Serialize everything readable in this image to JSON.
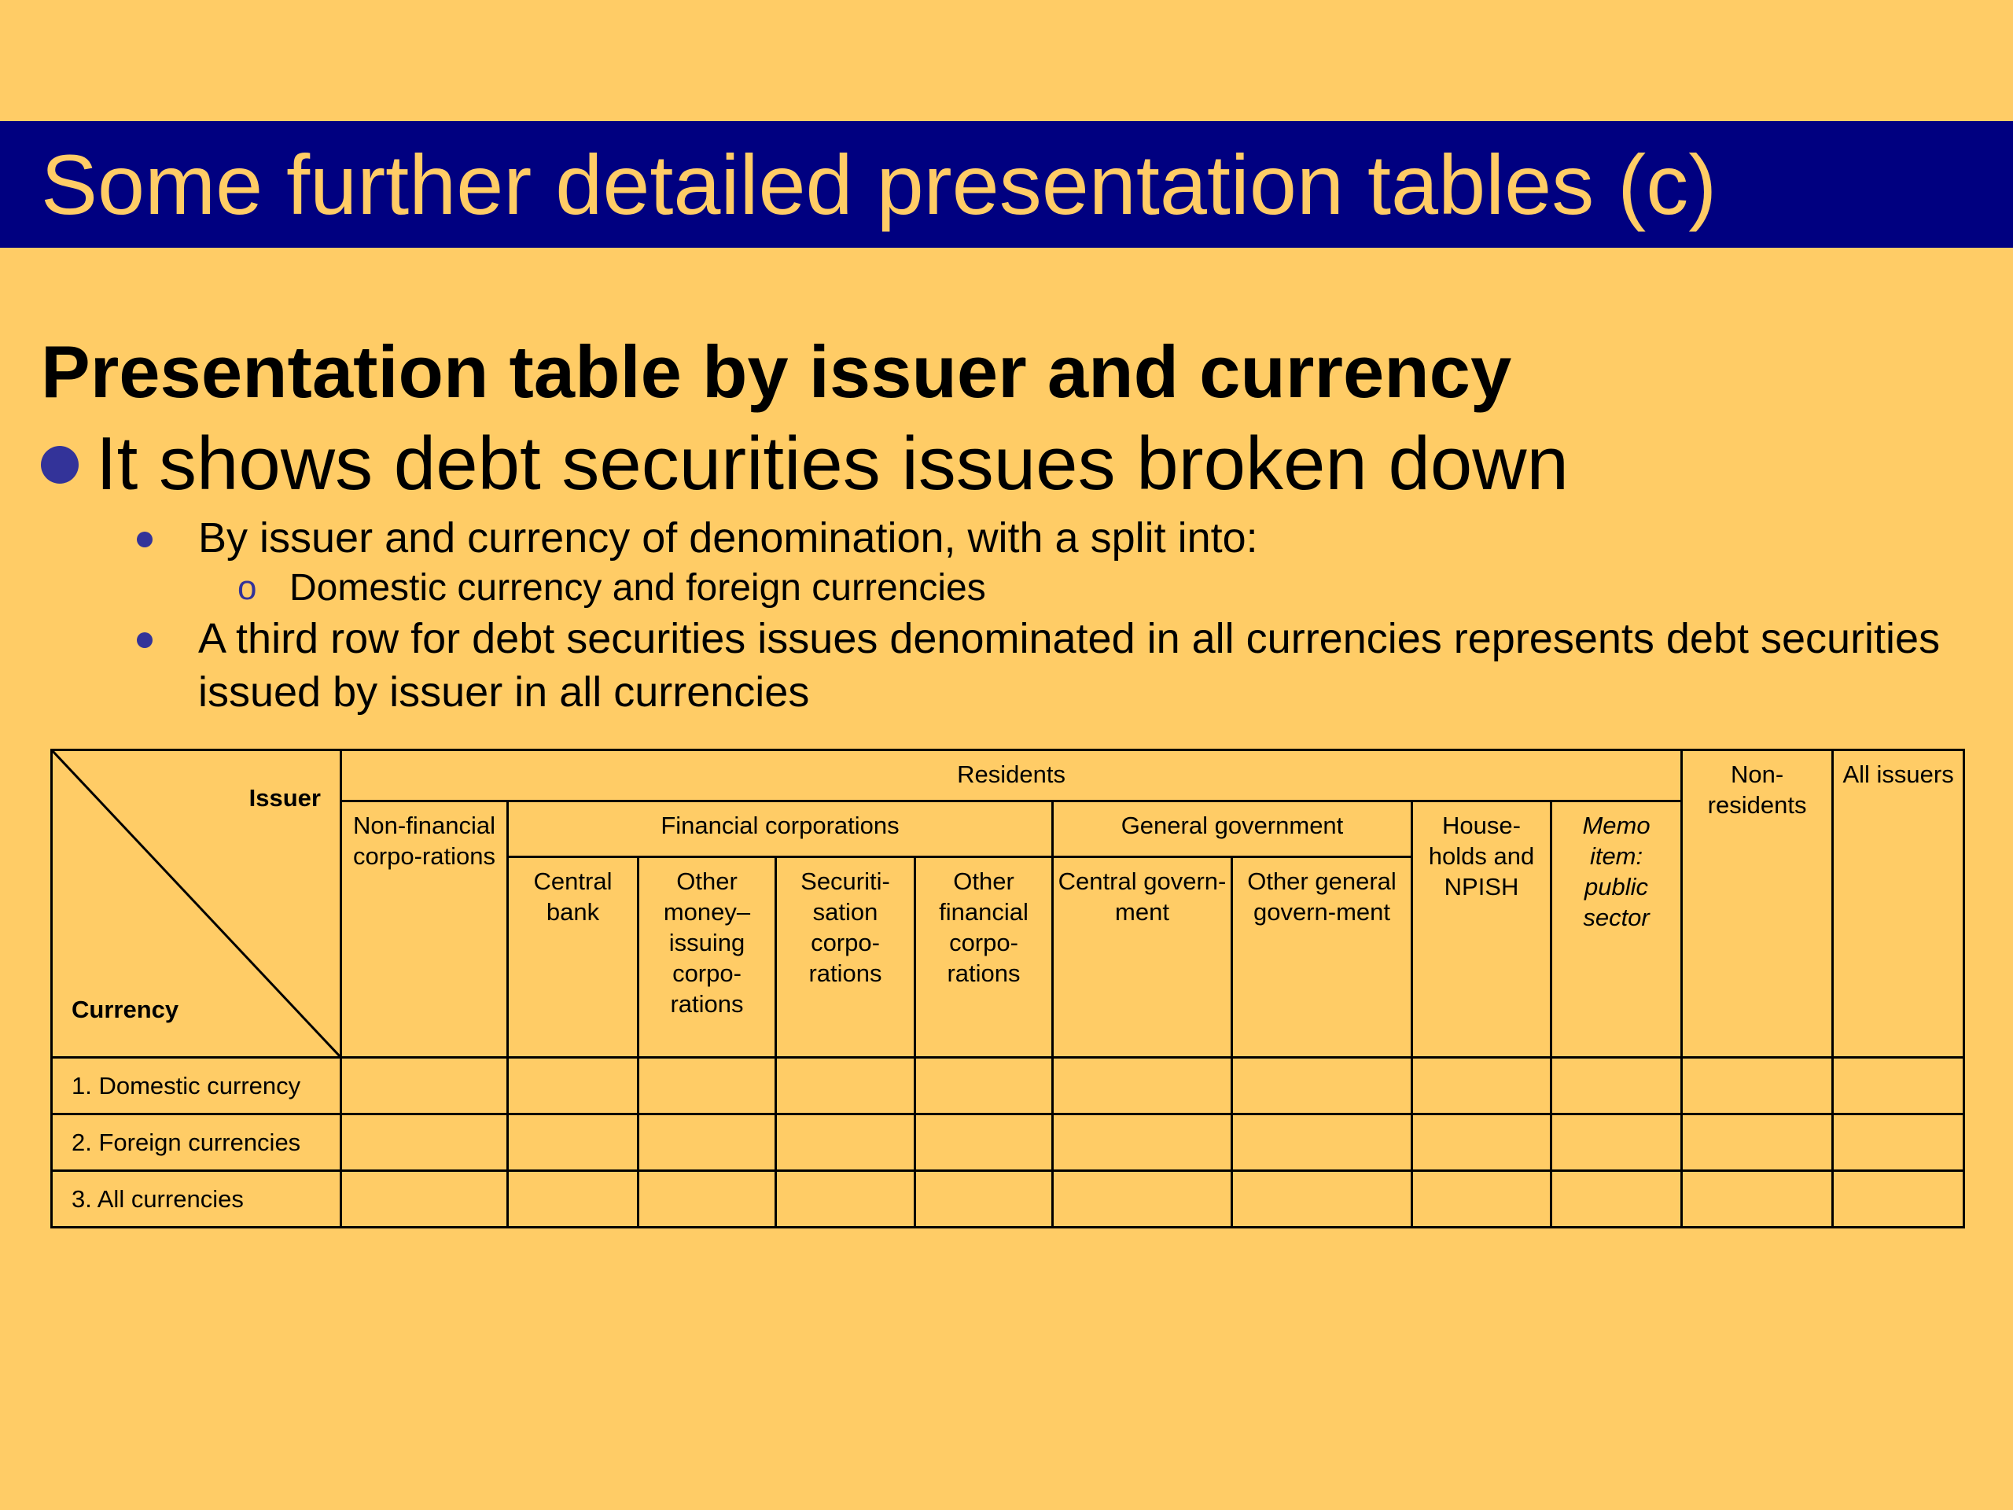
{
  "slide": {
    "title": "Some further detailed presentation tables (c)",
    "heading": "Presentation table by issuer and currency",
    "bullet": "It shows debt securities issues broken down",
    "subbullets": [
      "By issuer and currency of denomination, with a split into:",
      "A third row for debt securities issues denominated in all currencies represents debt securities issued by issuer in all currencies"
    ],
    "subsubbullet": "Domestic currency and foreign currencies"
  },
  "table": {
    "corner_top": "Issuer",
    "corner_bottom": "Currency",
    "groups": {
      "residents": "Residents",
      "financial_corporations": "Financial corporations",
      "general_government": "General government",
      "non_residents": "Non-residents",
      "all_issuers": "All issuers"
    },
    "columns": {
      "non_financial": "Non-financial corpo-rations",
      "central_bank": "Central bank",
      "other_money_issuing": "Other money–issuing corpo-rations",
      "securitisation": "Securiti-sation corpo-rations",
      "other_financial": "Other financial corpo-rations",
      "central_government": "Central govern-ment",
      "other_general_government": "Other general govern-ment",
      "households": "House-holds and NPISH",
      "memo": "Memo item: public sector"
    },
    "rows": [
      "1. Domestic currency",
      "2. Foreign currencies",
      "3. All currencies"
    ]
  }
}
